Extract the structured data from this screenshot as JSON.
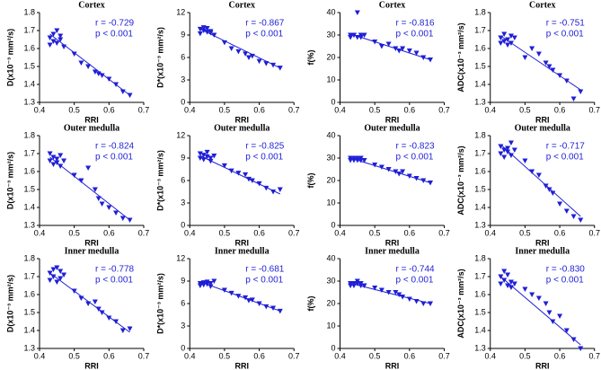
{
  "chart_data": [
    {
      "type": "scatter",
      "title": "Cortex",
      "x_label": "RRI",
      "y_label": "D(x10⁻³ mm²/s)",
      "annotations": [
        "r = -0.729",
        "p < 0.001"
      ],
      "color": "#1f1fd6",
      "x": [
        0.43,
        0.43,
        0.44,
        0.44,
        0.45,
        0.45,
        0.46,
        0.46,
        0.47,
        0.5,
        0.52,
        0.54,
        0.56,
        0.57,
        0.58,
        0.6,
        0.62,
        0.64,
        0.66
      ],
      "values": [
        1.62,
        1.66,
        1.64,
        1.68,
        1.63,
        1.7,
        1.65,
        1.67,
        1.61,
        1.57,
        1.52,
        1.5,
        1.47,
        1.46,
        1.45,
        1.43,
        1.4,
        1.36,
        1.34
      ],
      "trend": {
        "x": [
          0.43,
          0.66
        ],
        "values": [
          1.68,
          1.34
        ]
      },
      "xlim": [
        0.4,
        0.7
      ],
      "xticks": [
        0.4,
        0.5,
        0.6,
        0.7
      ],
      "ylim": [
        1.3,
        1.8
      ],
      "yticks": [
        1.3,
        1.4,
        1.5,
        1.6,
        1.7,
        1.8
      ]
    },
    {
      "type": "scatter",
      "title": "Cortex",
      "x_label": "RRI",
      "y_label": "D*(x10⁻³ mm²/s)",
      "annotations": [
        "r = -0.867",
        "p < 0.001"
      ],
      "color": "#1f1fd6",
      "x": [
        0.43,
        0.43,
        0.44,
        0.44,
        0.45,
        0.45,
        0.46,
        0.46,
        0.47,
        0.5,
        0.52,
        0.54,
        0.56,
        0.57,
        0.58,
        0.6,
        0.62,
        0.64,
        0.66
      ],
      "values": [
        9.8,
        9.2,
        9.6,
        10.0,
        9.4,
        9.9,
        9.5,
        9.3,
        9.0,
        8.0,
        7.2,
        6.8,
        6.5,
        6.0,
        6.2,
        5.5,
        5.2,
        5.0,
        4.6
      ],
      "trend": {
        "x": [
          0.43,
          0.66
        ],
        "values": [
          9.8,
          4.6
        ]
      },
      "xlim": [
        0.4,
        0.7
      ],
      "xticks": [
        0.4,
        0.5,
        0.6,
        0.7
      ],
      "ylim": [
        0,
        12
      ],
      "yticks": [
        0,
        3,
        6,
        9,
        12
      ]
    },
    {
      "type": "scatter",
      "title": "Cortex",
      "x_label": "RRI",
      "y_label": "f(%)",
      "annotations": [
        "r = -0.816",
        "p < 0.001"
      ],
      "color": "#1f1fd6",
      "x": [
        0.43,
        0.43,
        0.44,
        0.44,
        0.45,
        0.45,
        0.46,
        0.46,
        0.47,
        0.5,
        0.52,
        0.54,
        0.56,
        0.57,
        0.58,
        0.6,
        0.62,
        0.64,
        0.66
      ],
      "values": [
        30,
        29,
        30,
        30,
        29,
        40,
        30,
        29,
        30,
        27,
        25,
        26,
        24,
        23,
        24,
        23,
        22,
        20,
        19
      ],
      "trend": {
        "x": [
          0.43,
          0.66
        ],
        "values": [
          30.5,
          19
        ]
      },
      "xlim": [
        0.4,
        0.7
      ],
      "xticks": [
        0.4,
        0.5,
        0.6,
        0.7
      ],
      "ylim": [
        0,
        40
      ],
      "yticks": [
        0,
        10,
        20,
        30,
        40
      ]
    },
    {
      "type": "scatter",
      "title": "Cortex",
      "x_label": "RRI",
      "y_label": "ADC(x10⁻³ mm²/s)",
      "annotations": [
        "r = -0.751",
        "p < 0.001"
      ],
      "color": "#1f1fd6",
      "x": [
        0.43,
        0.43,
        0.44,
        0.44,
        0.45,
        0.45,
        0.46,
        0.46,
        0.47,
        0.5,
        0.52,
        0.54,
        0.56,
        0.57,
        0.58,
        0.6,
        0.62,
        0.64,
        0.66
      ],
      "values": [
        1.66,
        1.63,
        1.68,
        1.64,
        1.65,
        1.62,
        1.67,
        1.63,
        1.66,
        1.55,
        1.6,
        1.57,
        1.52,
        1.5,
        1.48,
        1.45,
        1.42,
        1.32,
        1.36
      ],
      "trend": {
        "x": [
          0.43,
          0.66
        ],
        "values": [
          1.67,
          1.37
        ]
      },
      "xlim": [
        0.4,
        0.7
      ],
      "xticks": [
        0.4,
        0.5,
        0.6,
        0.7
      ],
      "ylim": [
        1.3,
        1.8
      ],
      "yticks": [
        1.3,
        1.4,
        1.5,
        1.6,
        1.7,
        1.8
      ]
    },
    {
      "type": "scatter",
      "title": "Outer medulla",
      "x_label": "RRI",
      "y_label": "D(x10⁻³ mm²/s)",
      "annotations": [
        "r = -0.824",
        "p < 0.001"
      ],
      "color": "#1f1fd6",
      "x": [
        0.43,
        0.43,
        0.44,
        0.44,
        0.45,
        0.45,
        0.46,
        0.46,
        0.47,
        0.5,
        0.52,
        0.54,
        0.56,
        0.57,
        0.58,
        0.6,
        0.62,
        0.64,
        0.66
      ],
      "values": [
        1.7,
        1.66,
        1.68,
        1.64,
        1.67,
        1.65,
        1.69,
        1.63,
        1.66,
        1.58,
        1.55,
        1.62,
        1.5,
        1.45,
        1.42,
        1.4,
        1.37,
        1.34,
        1.33
      ],
      "trend": {
        "x": [
          0.43,
          0.66
        ],
        "values": [
          1.68,
          1.33
        ]
      },
      "xlim": [
        0.4,
        0.7
      ],
      "xticks": [
        0.4,
        0.5,
        0.6,
        0.7
      ],
      "ylim": [
        1.3,
        1.8
      ],
      "yticks": [
        1.3,
        1.4,
        1.5,
        1.6,
        1.7,
        1.8
      ]
    },
    {
      "type": "scatter",
      "title": "Outer medulla",
      "x_label": "RRI",
      "y_label": "D*(x10⁻³ mm²/s)",
      "annotations": [
        "r = -0.825",
        "p < 0.001"
      ],
      "color": "#1f1fd6",
      "x": [
        0.43,
        0.43,
        0.44,
        0.44,
        0.45,
        0.45,
        0.46,
        0.46,
        0.47,
        0.5,
        0.52,
        0.54,
        0.56,
        0.57,
        0.58,
        0.6,
        0.62,
        0.64,
        0.66
      ],
      "values": [
        9.6,
        9.0,
        9.4,
        8.8,
        9.2,
        9.8,
        9.0,
        8.6,
        9.3,
        8.0,
        7.3,
        7.0,
        6.8,
        6.2,
        6.0,
        5.6,
        5.0,
        4.5,
        4.8
      ],
      "trend": {
        "x": [
          0.43,
          0.66
        ],
        "values": [
          9.3,
          4.2
        ]
      },
      "xlim": [
        0.4,
        0.7
      ],
      "xticks": [
        0.4,
        0.5,
        0.6,
        0.7
      ],
      "ylim": [
        0,
        12
      ],
      "yticks": [
        0,
        3,
        6,
        9,
        12
      ]
    },
    {
      "type": "scatter",
      "title": "Outer medulla",
      "x_label": "RRI",
      "y_label": "f(%)",
      "annotations": [
        "r = -0.823",
        "p < 0.001"
      ],
      "color": "#1f1fd6",
      "x": [
        0.43,
        0.43,
        0.44,
        0.44,
        0.45,
        0.45,
        0.46,
        0.46,
        0.47,
        0.5,
        0.52,
        0.54,
        0.56,
        0.57,
        0.58,
        0.6,
        0.62,
        0.64,
        0.66
      ],
      "values": [
        30,
        29,
        30,
        29,
        30,
        29,
        30,
        29,
        29,
        27,
        26,
        25,
        24,
        23,
        24,
        22,
        21,
        20,
        19
      ],
      "trend": {
        "x": [
          0.43,
          0.66
        ],
        "values": [
          30,
          19
        ]
      },
      "xlim": [
        0.4,
        0.7
      ],
      "xticks": [
        0.4,
        0.5,
        0.6,
        0.7
      ],
      "ylim": [
        0,
        40
      ],
      "yticks": [
        0,
        10,
        20,
        30,
        40
      ]
    },
    {
      "type": "scatter",
      "title": "Outer medulla",
      "x_label": "RRI",
      "y_label": "ADC(x10⁻³ mm²/s)",
      "annotations": [
        "r = -0.717",
        "p < 0.001"
      ],
      "color": "#1f1fd6",
      "x": [
        0.43,
        0.43,
        0.44,
        0.44,
        0.45,
        0.45,
        0.46,
        0.46,
        0.47,
        0.5,
        0.52,
        0.54,
        0.56,
        0.57,
        0.58,
        0.6,
        0.62,
        0.64,
        0.66
      ],
      "values": [
        1.74,
        1.7,
        1.72,
        1.68,
        1.73,
        1.71,
        1.76,
        1.69,
        1.72,
        1.66,
        1.6,
        1.58,
        1.52,
        1.5,
        1.48,
        1.42,
        1.38,
        1.35,
        1.33
      ],
      "trend": {
        "x": [
          0.43,
          0.66
        ],
        "values": [
          1.75,
          1.35
        ]
      },
      "xlim": [
        0.4,
        0.7
      ],
      "xticks": [
        0.4,
        0.5,
        0.6,
        0.7
      ],
      "ylim": [
        1.3,
        1.8
      ],
      "yticks": [
        1.3,
        1.4,
        1.5,
        1.6,
        1.7,
        1.8
      ]
    },
    {
      "type": "scatter",
      "title": "Inner medulla",
      "x_label": "RRI",
      "y_label": "D(x10⁻³ mm²/s)",
      "annotations": [
        "r = -0.778",
        "p < 0.001"
      ],
      "color": "#1f1fd6",
      "x": [
        0.43,
        0.43,
        0.44,
        0.44,
        0.45,
        0.45,
        0.46,
        0.46,
        0.47,
        0.5,
        0.52,
        0.54,
        0.56,
        0.57,
        0.58,
        0.6,
        0.62,
        0.64,
        0.66
      ],
      "values": [
        1.72,
        1.68,
        1.74,
        1.7,
        1.75,
        1.67,
        1.73,
        1.69,
        1.71,
        1.62,
        1.58,
        1.55,
        1.56,
        1.52,
        1.5,
        1.47,
        1.45,
        1.4,
        1.41
      ],
      "trend": {
        "x": [
          0.43,
          0.66
        ],
        "values": [
          1.72,
          1.39
        ]
      },
      "xlim": [
        0.4,
        0.7
      ],
      "xticks": [
        0.4,
        0.5,
        0.6,
        0.7
      ],
      "ylim": [
        1.3,
        1.8
      ],
      "yticks": [
        1.3,
        1.4,
        1.5,
        1.6,
        1.7,
        1.8
      ]
    },
    {
      "type": "scatter",
      "title": "Inner medulla",
      "x_label": "RRI",
      "y_label": "D*(x10⁻³ mm²/s)",
      "annotations": [
        "r = -0.681",
        "p < 0.001"
      ],
      "color": "#1f1fd6",
      "x": [
        0.43,
        0.43,
        0.44,
        0.44,
        0.45,
        0.45,
        0.46,
        0.46,
        0.47,
        0.5,
        0.52,
        0.54,
        0.56,
        0.57,
        0.58,
        0.6,
        0.62,
        0.64,
        0.66
      ],
      "values": [
        8.7,
        8.4,
        8.8,
        8.5,
        8.6,
        8.9,
        8.3,
        8.7,
        9.0,
        7.8,
        7.4,
        7.0,
        6.8,
        6.4,
        6.5,
        6.0,
        5.6,
        5.4,
        5.0
      ],
      "trend": {
        "x": [
          0.43,
          0.66
        ],
        "values": [
          8.9,
          5.0
        ]
      },
      "xlim": [
        0.4,
        0.7
      ],
      "xticks": [
        0.4,
        0.5,
        0.6,
        0.7
      ],
      "ylim": [
        0,
        12
      ],
      "yticks": [
        0,
        3,
        6,
        9,
        12
      ]
    },
    {
      "type": "scatter",
      "title": "Inner medulla",
      "x_label": "RRI",
      "y_label": "f(%)",
      "annotations": [
        "r = -0.744",
        "p < 0.001"
      ],
      "color": "#1f1fd6",
      "x": [
        0.43,
        0.43,
        0.44,
        0.44,
        0.45,
        0.45,
        0.46,
        0.46,
        0.47,
        0.5,
        0.52,
        0.54,
        0.56,
        0.57,
        0.58,
        0.6,
        0.62,
        0.64,
        0.66
      ],
      "values": [
        29,
        28,
        29,
        28,
        30,
        29,
        28,
        29,
        28,
        27,
        26,
        25,
        25,
        24,
        23,
        22,
        21,
        20,
        20
      ],
      "trend": {
        "x": [
          0.43,
          0.66
        ],
        "values": [
          29,
          20
        ]
      },
      "xlim": [
        0.4,
        0.7
      ],
      "xticks": [
        0.4,
        0.5,
        0.6,
        0.7
      ],
      "ylim": [
        0,
        40
      ],
      "yticks": [
        0,
        10,
        20,
        30,
        40
      ]
    },
    {
      "type": "scatter",
      "title": "Inner medulla",
      "x_label": "RRI",
      "y_label": "ADC(x10⁻³ mm²/s)",
      "annotations": [
        "r = -0.830",
        "p < 0.001"
      ],
      "color": "#1f1fd6",
      "x": [
        0.43,
        0.43,
        0.44,
        0.44,
        0.45,
        0.45,
        0.46,
        0.46,
        0.47,
        0.5,
        0.52,
        0.54,
        0.56,
        0.57,
        0.58,
        0.6,
        0.62,
        0.64,
        0.66
      ],
      "values": [
        1.7,
        1.66,
        1.73,
        1.68,
        1.65,
        1.71,
        1.67,
        1.64,
        1.66,
        1.63,
        1.6,
        1.58,
        1.55,
        1.5,
        1.45,
        1.48,
        1.4,
        1.35,
        1.3
      ],
      "trend": {
        "x": [
          0.43,
          0.66
        ],
        "values": [
          1.7,
          1.32
        ]
      },
      "xlim": [
        0.4,
        0.7
      ],
      "xticks": [
        0.4,
        0.5,
        0.6,
        0.7
      ],
      "ylim": [
        1.3,
        1.8
      ],
      "yticks": [
        1.3,
        1.4,
        1.5,
        1.6,
        1.7,
        1.8
      ]
    }
  ]
}
